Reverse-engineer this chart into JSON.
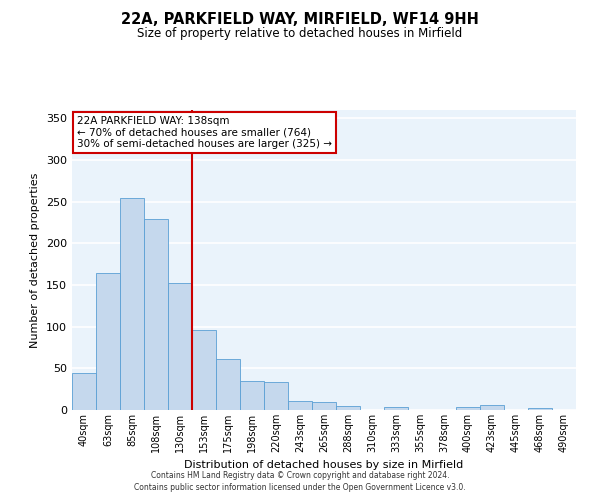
{
  "title": "22A, PARKFIELD WAY, MIRFIELD, WF14 9HH",
  "subtitle": "Size of property relative to detached houses in Mirfield",
  "xlabel": "Distribution of detached houses by size in Mirfield",
  "ylabel": "Number of detached properties",
  "bar_labels": [
    "40sqm",
    "63sqm",
    "85sqm",
    "108sqm",
    "130sqm",
    "153sqm",
    "175sqm",
    "198sqm",
    "220sqm",
    "243sqm",
    "265sqm",
    "288sqm",
    "310sqm",
    "333sqm",
    "355sqm",
    "378sqm",
    "400sqm",
    "423sqm",
    "445sqm",
    "468sqm",
    "490sqm"
  ],
  "bar_values": [
    44,
    165,
    254,
    229,
    152,
    96,
    61,
    35,
    34,
    11,
    10,
    5,
    0,
    4,
    0,
    0,
    4,
    6,
    0,
    2,
    0
  ],
  "bar_color": "#c5d8ed",
  "bar_edge_color": "#5a9fd4",
  "ylim": [
    0,
    360
  ],
  "yticks": [
    0,
    50,
    100,
    150,
    200,
    250,
    300,
    350
  ],
  "property_line_x": 4.5,
  "property_line_color": "#cc0000",
  "annotation_text_line1": "22A PARKFIELD WAY: 138sqm",
  "annotation_text_line2": "← 70% of detached houses are smaller (764)",
  "annotation_text_line3": "30% of semi-detached houses are larger (325) →",
  "annotation_box_color": "#cc0000",
  "footer_line1": "Contains HM Land Registry data © Crown copyright and database right 2024.",
  "footer_line2": "Contains public sector information licensed under the Open Government Licence v3.0.",
  "background_color": "#eaf3fb",
  "grid_color": "#ffffff",
  "fig_background": "#ffffff"
}
